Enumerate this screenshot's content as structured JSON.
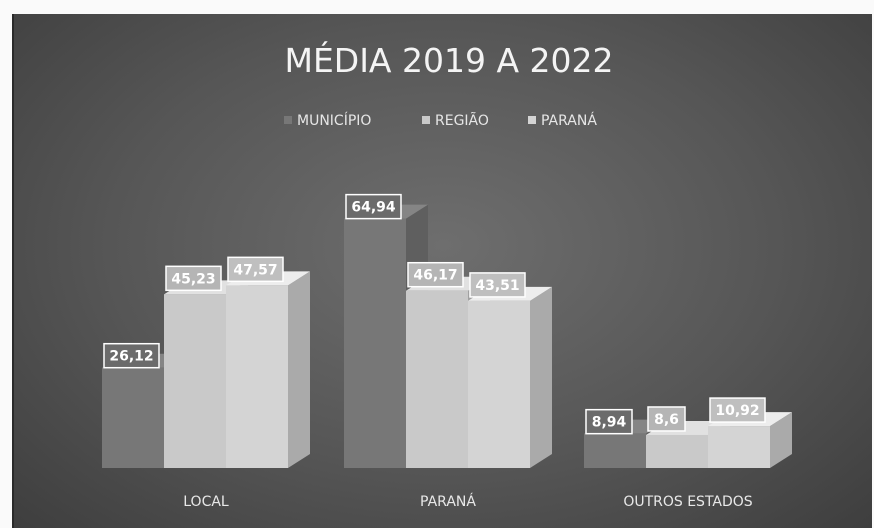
{
  "chart_data": {
    "type": "bar",
    "title": "MÉDIA 2019 A 2022",
    "categories": [
      "LOCAL",
      "PARANÁ",
      "OUTROS ESTADOS"
    ],
    "series": [
      {
        "name": "MUNICÍPIO",
        "values": [
          26.12,
          64.94,
          8.94
        ],
        "labels": [
          "26,12",
          "64,94",
          "8,94"
        ]
      },
      {
        "name": "REGIÃO",
        "values": [
          45.23,
          46.17,
          8.6
        ],
        "labels": [
          "45,23",
          "46,17",
          "8,6"
        ]
      },
      {
        "name": "PARANÁ",
        "values": [
          47.57,
          43.51,
          10.92
        ],
        "labels": [
          "47,57",
          "43,51",
          "10,92"
        ]
      }
    ],
    "ylim": [
      0,
      80
    ],
    "grid": false,
    "legend_position": "top",
    "style": "3d-columns",
    "colors": [
      "#777777",
      "#c9c9c9",
      "#d4d4d4"
    ]
  }
}
